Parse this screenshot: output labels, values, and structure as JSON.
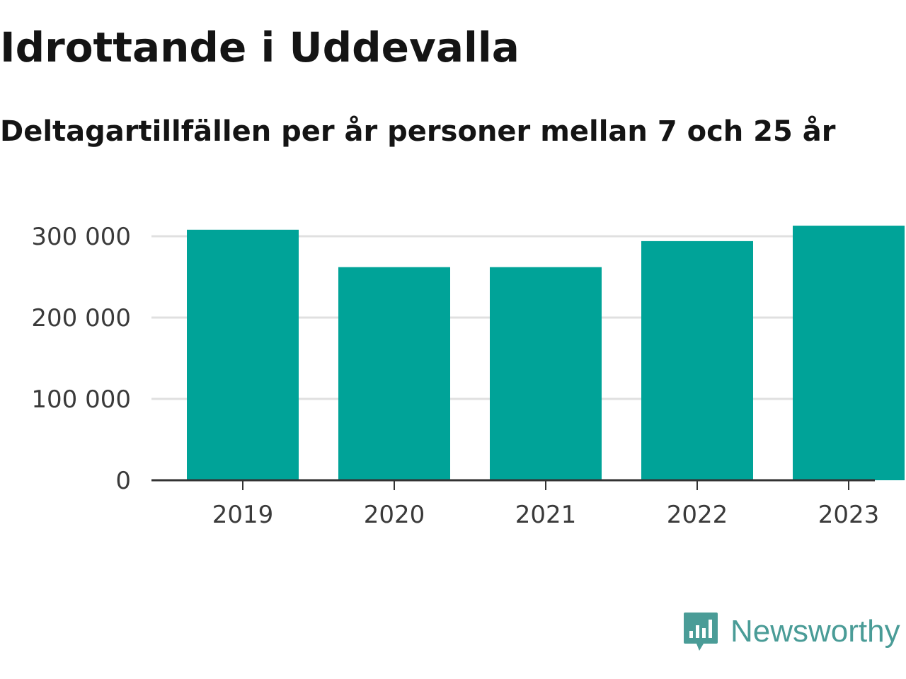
{
  "header": {
    "title": "Idrottande i Uddevalla",
    "subtitle": "Deltagartillfällen per år personer mellan 7 och 25 år"
  },
  "brand": {
    "name": "Newsworthy",
    "icon": "newsworthy-logo-icon",
    "color": "#4a9c97"
  },
  "colors": {
    "bar": "#00a398",
    "grid": "#e0e0e0",
    "axis": "#333333"
  },
  "chart_data": {
    "type": "bar",
    "title": "Idrottande i Uddevalla",
    "subtitle": "Deltagartillfällen per år personer mellan 7 och 25 år",
    "categories": [
      "2019",
      "2020",
      "2021",
      "2022",
      "2023"
    ],
    "values": [
      308000,
      262000,
      262000,
      294000,
      313000
    ],
    "ylim": [
      0,
      300000
    ],
    "yticks": [
      0,
      100000,
      200000,
      300000
    ],
    "ytick_labels": [
      "0",
      "100 000",
      "200 000",
      "300 000"
    ],
    "xlabel": "",
    "ylabel": "",
    "grid": true,
    "legend": "none"
  }
}
